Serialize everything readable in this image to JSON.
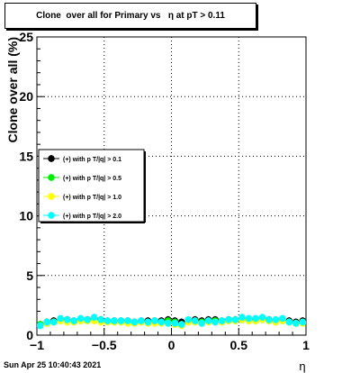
{
  "title": "Clone  over all for Primary vs   η at pT > 0.11",
  "timestamp": "Sun Apr 25 10:40:43 2021",
  "chart_data": {
    "type": "scatter",
    "title": "Clone  over all for Primary vs   η at pT > 0.11",
    "xlabel": "η",
    "ylabel": "Clone  over all (%)",
    "xlim": [
      -1,
      1
    ],
    "ylim": [
      0,
      25
    ],
    "x_ticks": [
      -1,
      -0.5,
      0,
      0.5,
      1
    ],
    "x_tick_labels": [
      "−1",
      "−0.5",
      "0",
      "0.5",
      "1"
    ],
    "y_ticks": [
      0,
      5,
      10,
      15,
      20,
      25
    ],
    "y_tick_labels": [
      "0",
      "5",
      "10",
      "15",
      "20",
      "25"
    ],
    "grid": true,
    "legend_position": "middle-left",
    "x": [
      -0.975,
      -0.925,
      -0.875,
      -0.825,
      -0.775,
      -0.725,
      -0.675,
      -0.625,
      -0.575,
      -0.525,
      -0.475,
      -0.425,
      -0.375,
      -0.325,
      -0.275,
      -0.225,
      -0.175,
      -0.125,
      -0.075,
      -0.025,
      0.025,
      0.075,
      0.125,
      0.175,
      0.225,
      0.275,
      0.325,
      0.375,
      0.425,
      0.475,
      0.525,
      0.575,
      0.625,
      0.675,
      0.725,
      0.775,
      0.825,
      0.875,
      0.925,
      0.975
    ],
    "series": [
      {
        "name": "(+) with p T/|q| > 0.1",
        "color": "#000000",
        "values": [
          0.9,
          1.1,
          1.2,
          1.3,
          1.3,
          1.2,
          1.3,
          1.3,
          1.4,
          1.3,
          1.2,
          1.2,
          1.2,
          1.2,
          1.1,
          1.2,
          1.2,
          1.2,
          1.2,
          1.3,
          1.2,
          1.1,
          1.2,
          1.3,
          1.2,
          1.3,
          1.3,
          1.2,
          1.3,
          1.3,
          1.4,
          1.3,
          1.3,
          1.4,
          1.3,
          1.2,
          1.3,
          1.2,
          1.1,
          1.2
        ]
      },
      {
        "name": "(+) with p T/|q| > 0.5",
        "color": "#00ee00",
        "values": [
          0.9,
          1.0,
          1.1,
          1.2,
          1.2,
          1.1,
          1.2,
          1.2,
          1.3,
          1.2,
          1.1,
          1.1,
          1.1,
          1.1,
          1.0,
          1.1,
          1.1,
          1.1,
          1.1,
          1.2,
          1.1,
          0.9,
          1.1,
          1.2,
          1.1,
          1.2,
          1.2,
          1.1,
          1.2,
          1.2,
          1.3,
          1.2,
          1.2,
          1.3,
          1.2,
          1.1,
          1.2,
          1.1,
          1.0,
          1.1
        ]
      },
      {
        "name": "(+) with p T/|q| > 1.0",
        "color": "#ffff00",
        "values": [
          0.8,
          1.0,
          1.1,
          1.2,
          1.1,
          1.1,
          1.2,
          1.2,
          1.2,
          1.1,
          1.1,
          1.1,
          1.1,
          1.0,
          1.0,
          1.1,
          1.0,
          1.0,
          1.0,
          1.0,
          0.9,
          0.8,
          1.1,
          1.1,
          1.0,
          1.1,
          1.1,
          1.1,
          1.2,
          1.2,
          1.3,
          1.2,
          1.2,
          1.3,
          1.2,
          1.1,
          1.2,
          1.1,
          1.0,
          1.0
        ]
      },
      {
        "name": "(+) with p T/|q| > 2.0",
        "color": "#00ffff",
        "values": [
          0.8,
          1.1,
          1.1,
          1.4,
          1.3,
          1.2,
          1.4,
          1.3,
          1.5,
          1.3,
          1.2,
          1.2,
          1.2,
          1.2,
          1.1,
          1.2,
          1.1,
          1.2,
          1.1,
          1.0,
          1.0,
          0.9,
          1.3,
          1.2,
          1.0,
          1.2,
          1.1,
          1.2,
          1.3,
          1.3,
          1.5,
          1.4,
          1.4,
          1.5,
          1.3,
          1.3,
          1.4,
          1.1,
          1.0,
          1.1
        ]
      }
    ]
  }
}
